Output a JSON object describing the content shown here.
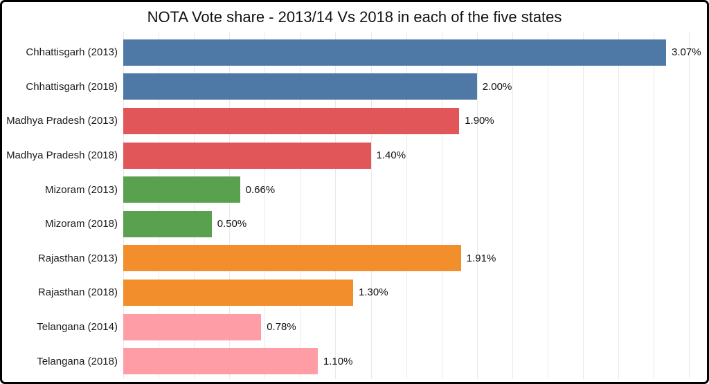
{
  "page": {
    "background": "#ffffff",
    "frame_border_color": "#000000",
    "gridline_color": "#e9e9e9"
  },
  "chart_data": {
    "type": "bar",
    "orientation": "horizontal",
    "title": "NOTA Vote share - 2013/14 Vs 2018 in each of the five states",
    "categories": [
      "Chhattisgarh (2013)",
      "Chhattisgarh (2018)",
      "Madhya Pradesh (2013)",
      "Madhya Pradesh (2018)",
      "Mizoram (2013)",
      "Mizoram (2018)",
      "Rajasthan (2013)",
      "Rajasthan (2018)",
      "Telangana (2014)",
      "Telangana (2018)"
    ],
    "values": [
      3.07,
      2.0,
      1.9,
      1.4,
      0.66,
      0.5,
      1.91,
      1.3,
      0.78,
      1.1
    ],
    "value_labels": [
      "3.07%",
      "2.00%",
      "1.90%",
      "1.40%",
      "0.66%",
      "0.50%",
      "1.91%",
      "1.30%",
      "0.78%",
      "1.10%"
    ],
    "bar_colors": [
      "#4e79a7",
      "#4e79a7",
      "#e15759",
      "#e15759",
      "#59a14f",
      "#59a14f",
      "#f28e2b",
      "#f28e2b",
      "#ff9da7",
      "#ff9da7"
    ],
    "xlabel": "",
    "ylabel": "",
    "xlim": [
      0,
      3.25
    ],
    "gridline_step": 0.2,
    "grid": true,
    "legend_position": "none",
    "value_label_position": "outside-end"
  }
}
